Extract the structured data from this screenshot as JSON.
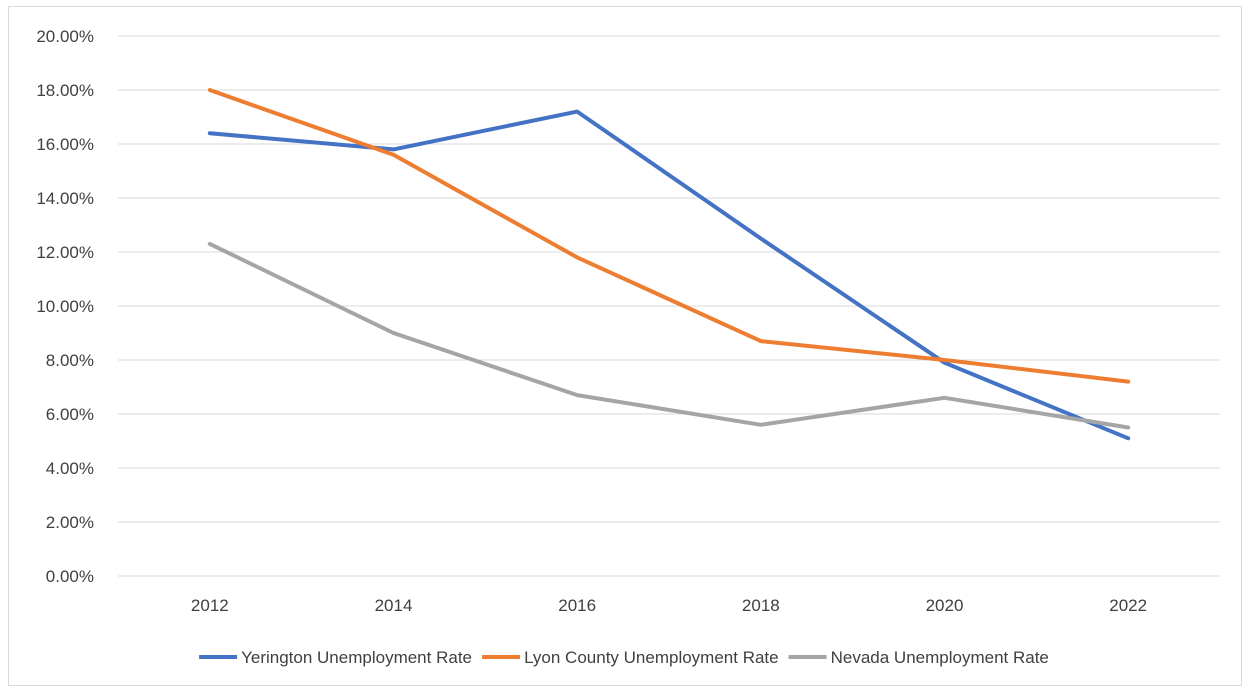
{
  "chart_data": {
    "type": "line",
    "title": "",
    "xlabel": "",
    "ylabel": "",
    "categories": [
      "2012",
      "2014",
      "2016",
      "2018",
      "2020",
      "2022"
    ],
    "ylim": [
      0,
      0.2
    ],
    "y_tick_values": [
      0,
      0.02,
      0.04,
      0.06,
      0.08,
      0.1,
      0.12,
      0.14,
      0.16,
      0.18,
      0.2
    ],
    "y_tick_labels": [
      "0.00%",
      "2.00%",
      "4.00%",
      "6.00%",
      "8.00%",
      "10.00%",
      "12.00%",
      "14.00%",
      "16.00%",
      "18.00%",
      "20.00%"
    ],
    "grid": true,
    "legend_position": "bottom",
    "series": [
      {
        "name": "Yerington Unemployment Rate",
        "color": "#4472c4",
        "values": [
          0.164,
          0.158,
          0.172,
          0.125,
          0.079,
          0.051
        ]
      },
      {
        "name": "Lyon County Unemployment Rate",
        "color": "#ed7d31",
        "values": [
          0.18,
          0.156,
          0.118,
          0.087,
          0.08,
          0.072
        ]
      },
      {
        "name": "Nevada Unemployment Rate",
        "color": "#a5a5a5",
        "values": [
          0.123,
          0.09,
          0.067,
          0.056,
          0.066,
          0.055
        ]
      }
    ]
  }
}
